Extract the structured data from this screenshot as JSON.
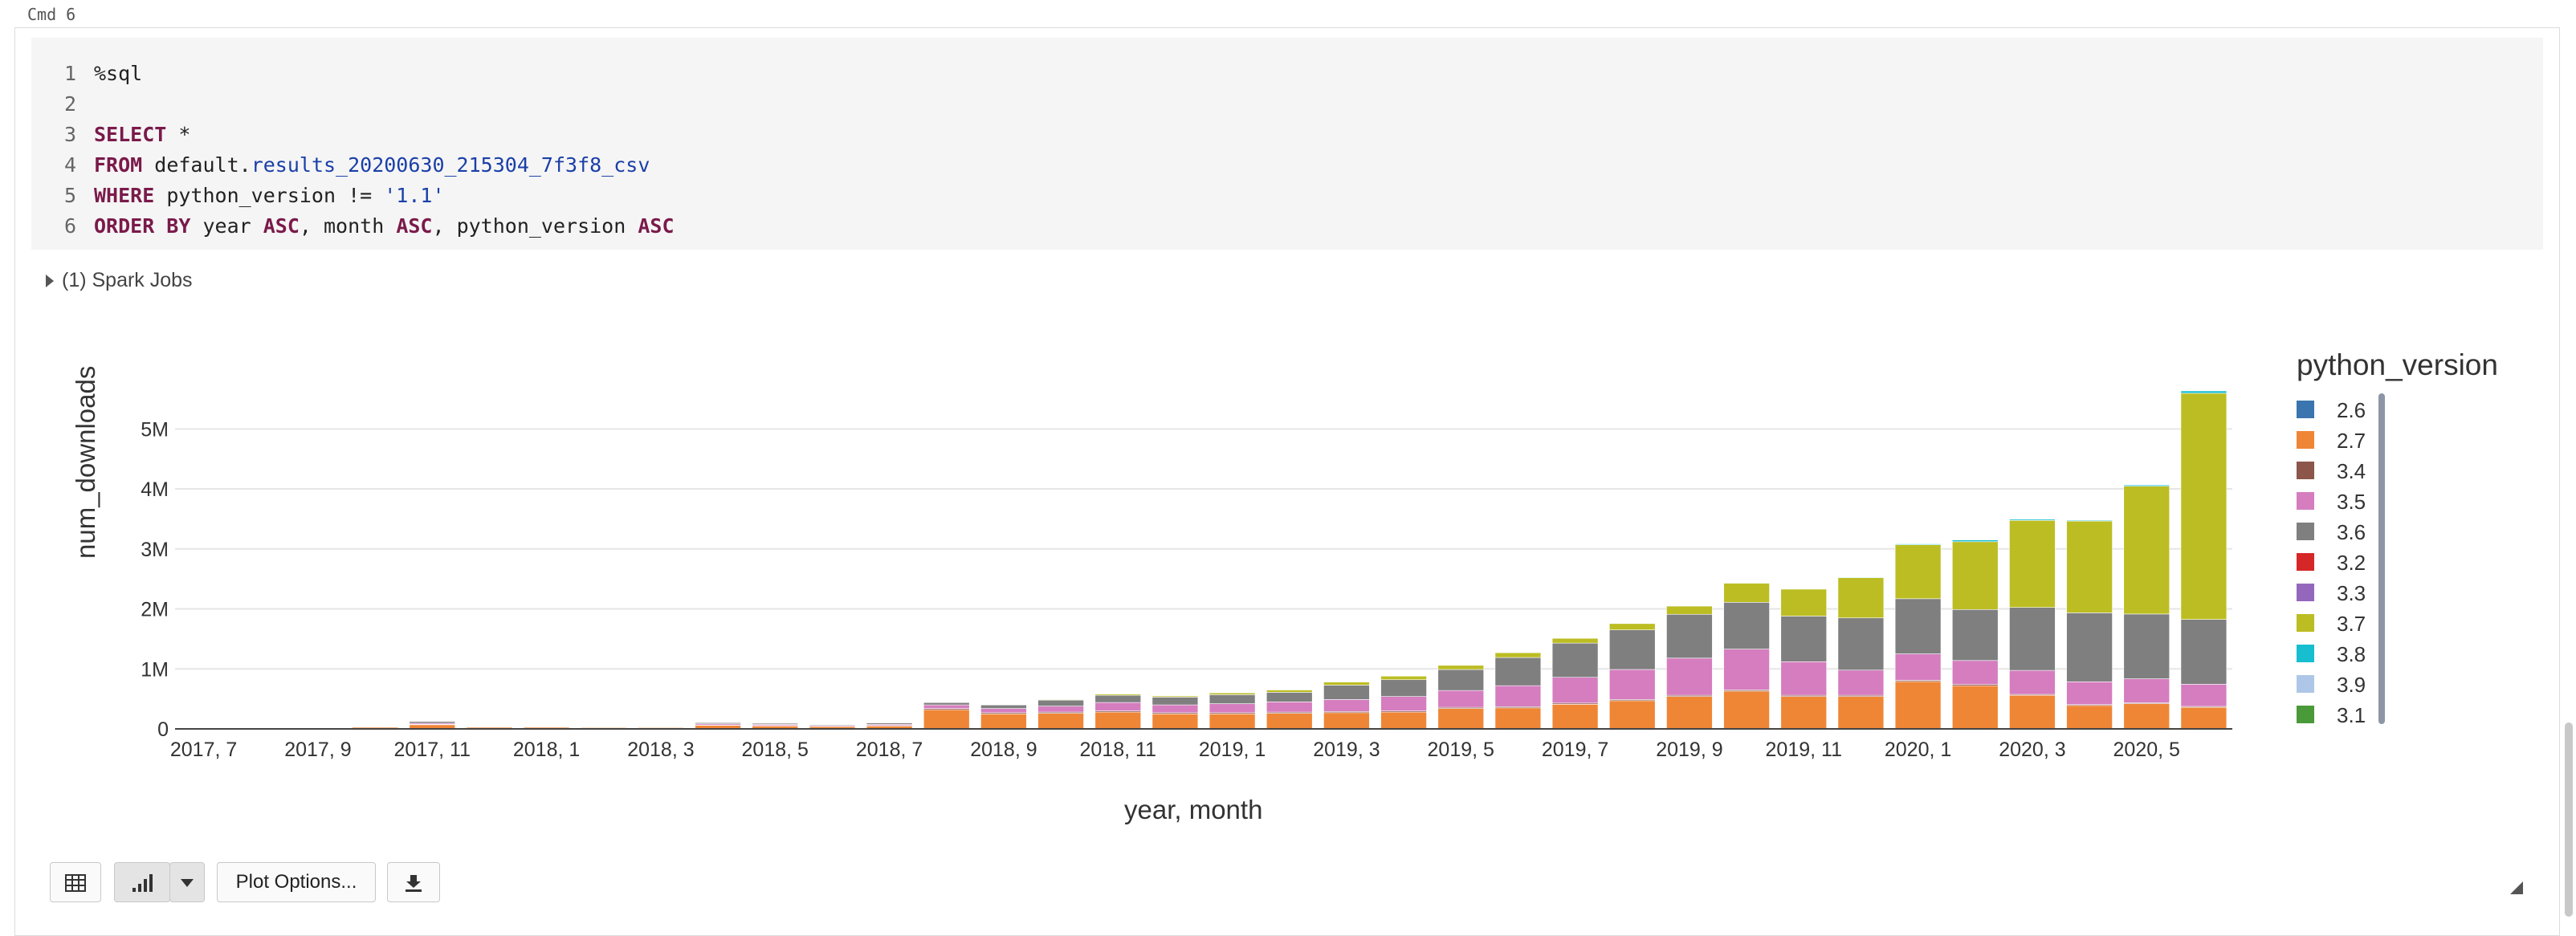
{
  "cell": {
    "label": "Cmd  6",
    "code": [
      {
        "n": "1",
        "tokens": [
          {
            "t": "%sql",
            "c": "plain"
          }
        ]
      },
      {
        "n": "2",
        "tokens": []
      },
      {
        "n": "3",
        "tokens": [
          {
            "t": "SELECT",
            "c": "kw"
          },
          {
            "t": " *",
            "c": "plain"
          }
        ]
      },
      {
        "n": "4",
        "tokens": [
          {
            "t": "FROM",
            "c": "kw"
          },
          {
            "t": " default.",
            "c": "plain"
          },
          {
            "t": "results_20200630_215304_7f3f8_csv",
            "c": "tbl"
          }
        ]
      },
      {
        "n": "5",
        "tokens": [
          {
            "t": "WHERE",
            "c": "kw"
          },
          {
            "t": " python_version != ",
            "c": "plain"
          },
          {
            "t": "'1.1'",
            "c": "str"
          }
        ]
      },
      {
        "n": "6",
        "tokens": [
          {
            "t": "ORDER BY",
            "c": "kw"
          },
          {
            "t": " year ",
            "c": "plain"
          },
          {
            "t": "ASC",
            "c": "kw"
          },
          {
            "t": ", month ",
            "c": "plain"
          },
          {
            "t": "ASC",
            "c": "kw"
          },
          {
            "t": ", python_version ",
            "c": "plain"
          },
          {
            "t": "ASC",
            "c": "kw"
          }
        ]
      }
    ],
    "spark_jobs": "(1) Spark Jobs"
  },
  "toolbar": {
    "table_icon": "table-icon",
    "chart_icon": "bar-chart-icon",
    "dropdown_icon": "caret-down-icon",
    "plot_options_label": "Plot Options...",
    "download_icon": "download-icon"
  },
  "chart_data": {
    "type": "bar",
    "stacked": true,
    "xlabel": "year, month",
    "ylabel": "num_downloads",
    "ylim": [
      0,
      5700000
    ],
    "yticks": [
      0,
      1000000,
      2000000,
      3000000,
      4000000,
      5000000
    ],
    "ytick_labels": [
      "0",
      "1M",
      "2M",
      "3M",
      "4M",
      "5M"
    ],
    "grid": true,
    "legend_title": "python_version",
    "legend_position": "right",
    "categories": [
      "2017, 7",
      "2017, 8",
      "2017, 9",
      "2017, 10",
      "2017, 11",
      "2017, 12",
      "2018, 1",
      "2018, 2",
      "2018, 3",
      "2018, 4",
      "2018, 5",
      "2018, 6",
      "2018, 7",
      "2018, 8",
      "2018, 9",
      "2018, 10",
      "2018, 11",
      "2018, 12",
      "2019, 1",
      "2019, 2",
      "2019, 3",
      "2019, 4",
      "2019, 5",
      "2019, 6",
      "2019, 7",
      "2019, 8",
      "2019, 9",
      "2019, 10",
      "2019, 11",
      "2019, 12",
      "2020, 1",
      "2020, 2",
      "2020, 3",
      "2020, 4",
      "2020, 5",
      "2020, 6"
    ],
    "xtick_labels": [
      "2017, 7",
      "2017, 9",
      "2017, 11",
      "2018, 1",
      "2018, 3",
      "2018, 5",
      "2018, 7",
      "2018, 9",
      "2018, 11",
      "2019, 1",
      "2019, 3",
      "2019, 5",
      "2019, 7",
      "2019, 9",
      "2019, 11",
      "2020, 1",
      "2020, 3",
      "2020, 5"
    ],
    "series": [
      {
        "name": "2.6",
        "color": "#3b75af",
        "values": [
          0,
          0,
          0,
          0,
          0,
          0,
          0,
          0,
          0,
          0,
          0,
          0,
          0,
          0,
          0,
          0,
          0,
          0,
          0,
          0,
          0,
          0,
          0,
          0,
          0,
          0,
          0,
          0,
          0,
          0,
          0,
          0,
          0,
          0,
          0,
          0
        ]
      },
      {
        "name": "2.7",
        "color": "#ef8636",
        "values": [
          20000,
          18000,
          15000,
          30000,
          70000,
          30000,
          30000,
          25000,
          25000,
          60000,
          50000,
          40000,
          50000,
          320000,
          250000,
          260000,
          280000,
          250000,
          250000,
          260000,
          270000,
          280000,
          340000,
          350000,
          410000,
          470000,
          540000,
          630000,
          540000,
          540000,
          790000,
          720000,
          560000,
          390000,
          420000,
          360000
        ]
      },
      {
        "name": "3.4",
        "color": "#8c564b",
        "values": [
          2000,
          2000,
          2000,
          3000,
          5000,
          3000,
          3000,
          3000,
          3000,
          5000,
          5000,
          4000,
          5000,
          20000,
          20000,
          20000,
          20000,
          20000,
          20000,
          20000,
          20000,
          20000,
          20000,
          20000,
          20000,
          20000,
          20000,
          20000,
          20000,
          20000,
          20000,
          20000,
          15000,
          15000,
          15000,
          15000
        ]
      },
      {
        "name": "3.5",
        "color": "#d57dbf",
        "values": [
          5000,
          5000,
          4000,
          8000,
          20000,
          8000,
          8000,
          7000,
          8000,
          20000,
          20000,
          15000,
          20000,
          60000,
          70000,
          100000,
          140000,
          130000,
          150000,
          170000,
          200000,
          240000,
          280000,
          350000,
          430000,
          500000,
          620000,
          680000,
          560000,
          420000,
          440000,
          400000,
          400000,
          380000,
          400000,
          370000
        ]
      },
      {
        "name": "3.6",
        "color": "#7f7f7f",
        "values": [
          5000,
          5000,
          4000,
          8000,
          30000,
          8000,
          8000,
          7000,
          10000,
          20000,
          20000,
          15000,
          25000,
          40000,
          60000,
          100000,
          120000,
          130000,
          150000,
          160000,
          240000,
          280000,
          350000,
          470000,
          570000,
          660000,
          730000,
          780000,
          760000,
          870000,
          920000,
          850000,
          1050000,
          1150000,
          1080000,
          1080000
        ]
      },
      {
        "name": "3.2",
        "color": "#d62728",
        "values": [
          0,
          0,
          0,
          0,
          0,
          0,
          0,
          0,
          0,
          0,
          0,
          0,
          0,
          0,
          0,
          0,
          0,
          0,
          0,
          0,
          0,
          0,
          0,
          0,
          0,
          0,
          0,
          0,
          0,
          0,
          0,
          0,
          0,
          0,
          0,
          0
        ]
      },
      {
        "name": "3.3",
        "color": "#9467bd",
        "values": [
          0,
          0,
          0,
          0,
          0,
          0,
          0,
          0,
          0,
          0,
          0,
          0,
          0,
          0,
          0,
          0,
          0,
          0,
          0,
          0,
          0,
          0,
          0,
          0,
          0,
          0,
          0,
          0,
          0,
          0,
          0,
          0,
          0,
          0,
          0,
          0
        ]
      },
      {
        "name": "3.7",
        "color": "#bcbd22",
        "values": [
          0,
          0,
          0,
          0,
          0,
          0,
          0,
          0,
          0,
          0,
          0,
          0,
          0,
          5000,
          5000,
          10000,
          20000,
          20000,
          30000,
          40000,
          50000,
          60000,
          70000,
          80000,
          80000,
          110000,
          140000,
          320000,
          450000,
          670000,
          900000,
          1130000,
          1450000,
          1530000,
          2130000,
          3770000
        ]
      },
      {
        "name": "3.8",
        "color": "#17becf",
        "values": [
          0,
          0,
          0,
          0,
          0,
          0,
          0,
          0,
          0,
          0,
          0,
          0,
          0,
          0,
          0,
          0,
          0,
          0,
          0,
          0,
          0,
          0,
          0,
          0,
          0,
          2000,
          3000,
          5000,
          8000,
          10000,
          15000,
          30000,
          20000,
          15000,
          20000,
          40000
        ]
      },
      {
        "name": "3.9",
        "color": "#aec7e8",
        "values": [
          0,
          0,
          0,
          0,
          0,
          0,
          0,
          0,
          0,
          0,
          0,
          0,
          0,
          0,
          0,
          0,
          0,
          0,
          0,
          0,
          0,
          0,
          0,
          0,
          0,
          0,
          0,
          0,
          0,
          0,
          0,
          0,
          0,
          0,
          0,
          0
        ]
      },
      {
        "name": "3.1",
        "color": "#4a9a3a",
        "values": [
          1000,
          1000,
          1000,
          2000,
          5000,
          2000,
          2000,
          2000,
          2000,
          5000,
          5000,
          4000,
          5000,
          8000,
          8000,
          8000,
          8000,
          8000,
          8000,
          8000,
          8000,
          8000,
          8000,
          8000,
          8000,
          8000,
          8000,
          8000,
          8000,
          8000,
          8000,
          8000,
          8000,
          8000,
          8000,
          8000
        ]
      }
    ]
  }
}
